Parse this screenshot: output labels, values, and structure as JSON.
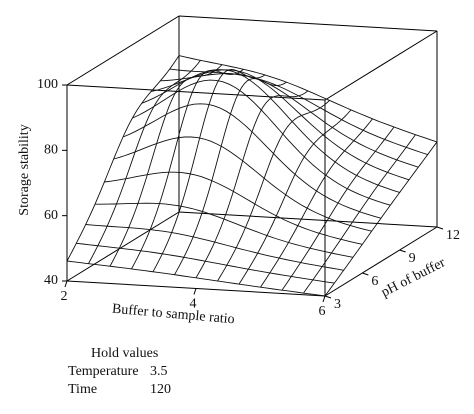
{
  "chart_data": {
    "type": "surface",
    "title": "",
    "zlabel": "Storage stability",
    "xlabel": "Buffer to sample ratio",
    "ylabel": "pH of buffer",
    "z_ticks": [
      "40",
      "60",
      "80",
      "100"
    ],
    "x_ticks": [
      "2",
      "4",
      "6"
    ],
    "y_ticks": [
      "3",
      "6",
      "9",
      "12"
    ],
    "xlim": [
      2,
      6
    ],
    "ylim": [
      3,
      12
    ],
    "zlim": [
      40,
      100
    ],
    "grid": "12x12 wireframe",
    "corner_values": {
      "x2_pH3": 46,
      "x6_pH3": 40,
      "x2_pH12": 87,
      "x6_pH12": 66
    },
    "peak": {
      "x": 3.3,
      "pH": 8.5,
      "z": 91
    }
  },
  "hold_values": {
    "title": "Hold values",
    "rows": [
      {
        "label": "Temperature",
        "value": "3.5"
      },
      {
        "label": "Time",
        "value": "120"
      }
    ]
  },
  "colors": {
    "line": "#000000",
    "surface_line": "#111111"
  }
}
